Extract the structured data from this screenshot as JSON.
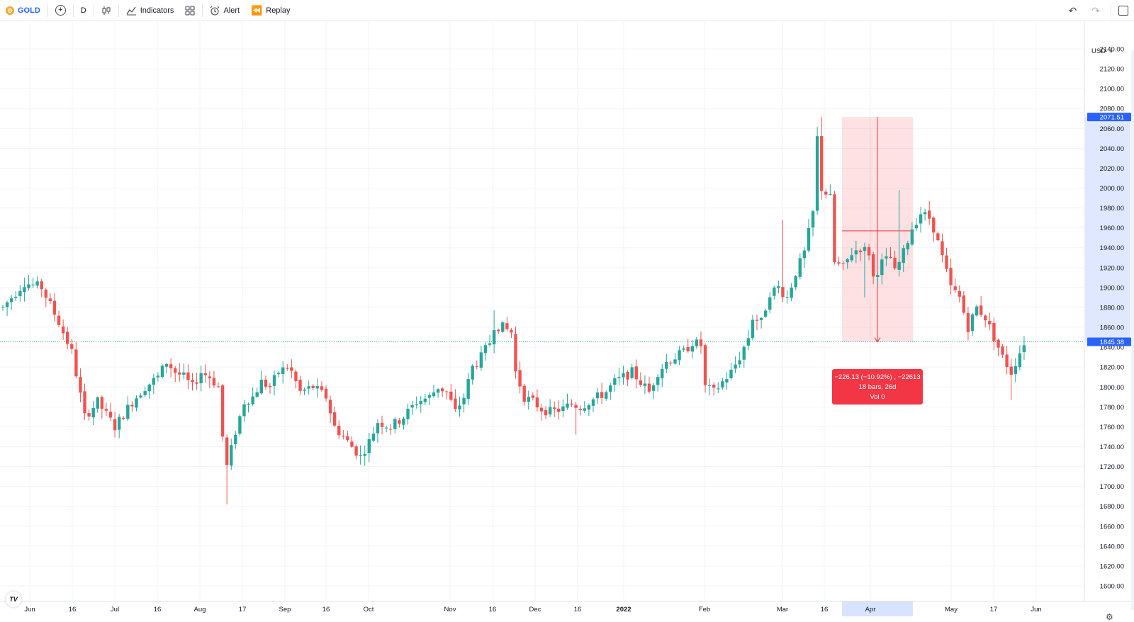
{
  "toolbar": {
    "symbol": "GOLD",
    "add_icon": "plus-circle-icon",
    "interval": "D",
    "chart_type_icon": "candlestick-icon",
    "indicators_label": "Indicators",
    "templates_icon": "grid-icon",
    "alert_label": "Alert",
    "replay_label": "Replay",
    "undo_icon": "undo-icon",
    "redo_icon": "redo-icon",
    "layout_icon": "square-icon"
  },
  "currency": "USD",
  "logo": "TV",
  "colors": {
    "up": "#26a69a",
    "down": "#ef5350",
    "accent": "#2962ff",
    "measure": "#f23645"
  },
  "chart_data": {
    "type": "candlestick",
    "ylim": [
      1600,
      2150
    ],
    "y_ticks": [
      "2140.00",
      "2120.00",
      "2100.00",
      "2080.00",
      "2060.00",
      "2040.00",
      "2020.00",
      "2000.00",
      "1980.00",
      "1960.00",
      "1940.00",
      "1920.00",
      "1900.00",
      "1880.00",
      "1860.00",
      "1840.00",
      "1820.00",
      "1800.00",
      "1780.00",
      "1760.00",
      "1740.00",
      "1720.00",
      "1700.00",
      "1680.00",
      "1660.00",
      "1640.00",
      "1620.00",
      "1600.00"
    ],
    "x_ticks": [
      "Jun",
      "16",
      "Jul",
      "16",
      "Aug",
      "17",
      "Sep",
      "16",
      "Oct",
      "Nov",
      "16",
      "Dec",
      "16",
      "2022",
      "Feb",
      "Mar",
      "16",
      "Apr",
      "May",
      "17",
      "Jun"
    ],
    "bold_tick": "2022",
    "highlight_tick": "Apr",
    "price_labels": {
      "high": "2071.51",
      "last": "1845.38"
    },
    "last_price": 1845.38,
    "measure": {
      "line1": "−226.13 (−10.92%) , −22613",
      "line2": "18 bars, 26d",
      "line3": "Vol 0",
      "start_price": 2071.51,
      "end_price": 1845.38,
      "bars": 18,
      "days": 26
    },
    "anchors": [
      [
        0,
        1880
      ],
      [
        5,
        1905
      ],
      [
        9,
        1900
      ],
      [
        13,
        1865
      ],
      [
        16,
        1835
      ],
      [
        19,
        1770
      ],
      [
        22,
        1785
      ],
      [
        26,
        1760
      ],
      [
        30,
        1785
      ],
      [
        33,
        1800
      ],
      [
        36,
        1810
      ],
      [
        38,
        1825
      ],
      [
        40,
        1815
      ],
      [
        42,
        1810
      ],
      [
        44,
        1800
      ],
      [
        46,
        1815
      ],
      [
        48,
        1810
      ],
      [
        50,
        1800
      ],
      [
        51,
        1750
      ],
      [
        52,
        1720
      ],
      [
        54,
        1755
      ],
      [
        56,
        1785
      ],
      [
        58,
        1790
      ],
      [
        60,
        1805
      ],
      [
        62,
        1800
      ],
      [
        64,
        1815
      ],
      [
        66,
        1820
      ],
      [
        67,
        1815
      ],
      [
        69,
        1795
      ],
      [
        72,
        1800
      ],
      [
        75,
        1790
      ],
      [
        77,
        1760
      ],
      [
        80,
        1745
      ],
      [
        83,
        1730
      ],
      [
        85,
        1745
      ],
      [
        87,
        1765
      ],
      [
        90,
        1760
      ],
      [
        93,
        1770
      ],
      [
        96,
        1785
      ],
      [
        99,
        1790
      ],
      [
        101,
        1800
      ],
      [
        103,
        1795
      ],
      [
        105,
        1775
      ],
      [
        107,
        1790
      ],
      [
        109,
        1820
      ],
      [
        111,
        1830
      ],
      [
        113,
        1845
      ],
      [
        114,
        1862
      ],
      [
        116,
        1860
      ],
      [
        118,
        1855
      ],
      [
        119,
        1815
      ],
      [
        121,
        1790
      ],
      [
        123,
        1785
      ],
      [
        125,
        1778
      ],
      [
        127,
        1775
      ],
      [
        130,
        1778
      ],
      [
        132,
        1783
      ],
      [
        134,
        1780
      ],
      [
        136,
        1785
      ],
      [
        138,
        1790
      ],
      [
        140,
        1795
      ],
      [
        142,
        1805
      ],
      [
        144,
        1810
      ],
      [
        146,
        1815
      ],
      [
        148,
        1805
      ],
      [
        150,
        1795
      ],
      [
        152,
        1815
      ],
      [
        154,
        1825
      ],
      [
        156,
        1830
      ],
      [
        158,
        1835
      ],
      [
        160,
        1845
      ],
      [
        162,
        1842
      ],
      [
        163,
        1800
      ],
      [
        165,
        1795
      ],
      [
        167,
        1805
      ],
      [
        169,
        1815
      ],
      [
        171,
        1830
      ],
      [
        173,
        1850
      ],
      [
        174,
        1870
      ],
      [
        176,
        1865
      ],
      [
        178,
        1895
      ],
      [
        180,
        1900
      ],
      [
        182,
        1890
      ],
      [
        184,
        1915
      ],
      [
        186,
        1935
      ],
      [
        188,
        1975
      ],
      [
        189,
        2050
      ],
      [
        190,
        2000
      ],
      [
        192,
        1990
      ],
      [
        193,
        1925
      ],
      [
        195,
        1920
      ],
      [
        197,
        1935
      ],
      [
        199,
        1940
      ],
      [
        201,
        1935
      ],
      [
        202,
        1910
      ],
      [
        204,
        1925
      ],
      [
        206,
        1930
      ],
      [
        207,
        1915
      ],
      [
        209,
        1935
      ],
      [
        211,
        1960
      ],
      [
        213,
        1975
      ],
      [
        215,
        1970
      ],
      [
        216,
        1960
      ],
      [
        218,
        1930
      ],
      [
        220,
        1900
      ],
      [
        222,
        1890
      ],
      [
        224,
        1860
      ],
      [
        226,
        1880
      ],
      [
        228,
        1870
      ],
      [
        230,
        1850
      ],
      [
        232,
        1830
      ],
      [
        234,
        1815
      ],
      [
        236,
        1835
      ],
      [
        237,
        1845
      ]
    ]
  }
}
